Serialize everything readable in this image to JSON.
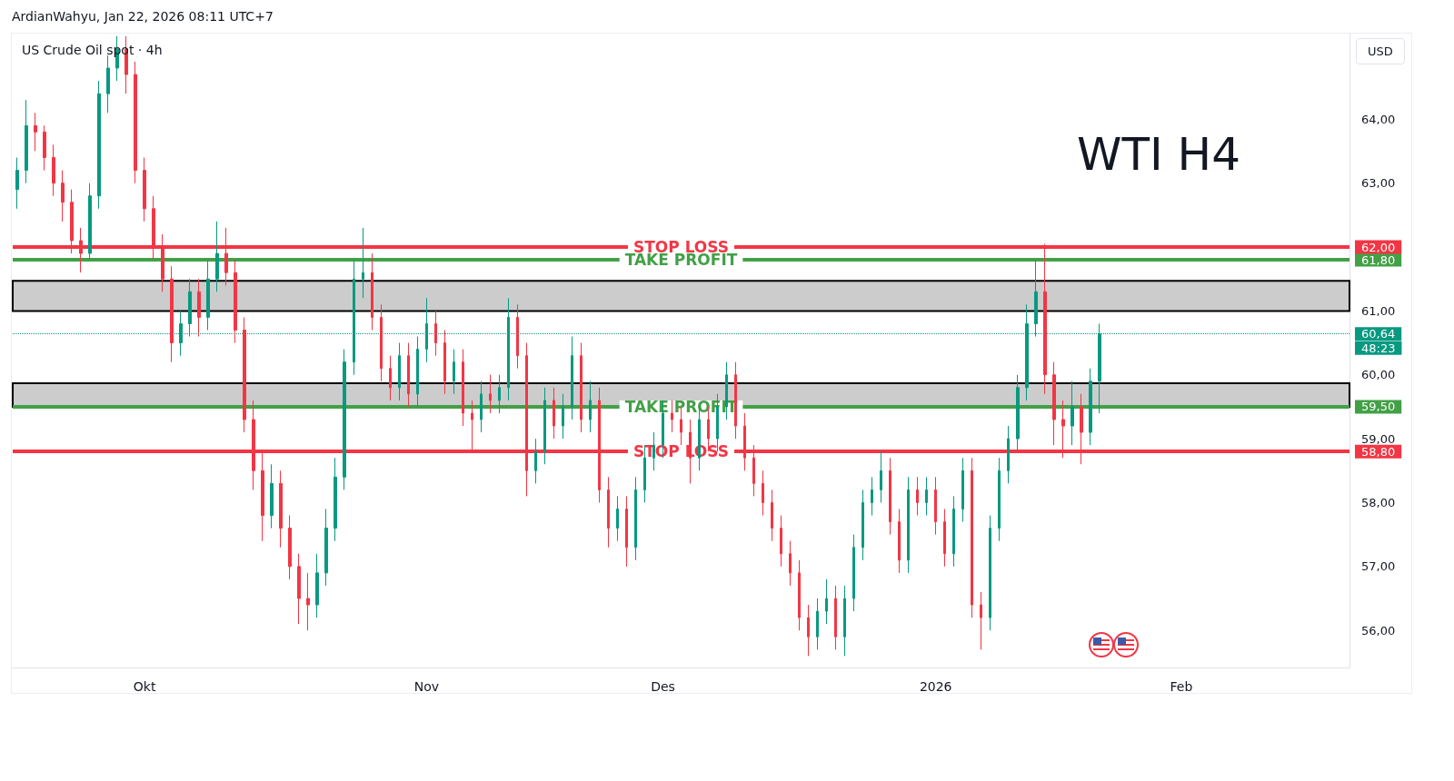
{
  "chart_data": {
    "type": "candlestick",
    "title": "US Crude Oil spot · 4h",
    "subtitle": "ArdianWahyu, Jan 22, 2026 08:11 UTC+7",
    "ylabel": "USD",
    "categories": [
      null,
      null,
      null,
      null,
      null,
      null,
      null,
      null,
      null,
      null,
      null,
      null,
      null,
      null,
      "Okt",
      null,
      null,
      null,
      null,
      null,
      null,
      null,
      null,
      null,
      null,
      null,
      null,
      null,
      null,
      null,
      null,
      null,
      null,
      null,
      null,
      null,
      null,
      null,
      null,
      null,
      null,
      null,
      null,
      null,
      null,
      "Nov",
      null,
      null,
      null,
      null,
      null,
      null,
      null,
      null,
      null,
      null,
      null,
      null,
      null,
      null,
      null,
      null,
      null,
      null,
      null,
      null,
      null,
      null,
      null,
      null,
      null,
      "Des",
      null,
      null,
      null,
      null,
      null,
      null,
      null,
      null,
      null,
      null,
      null,
      null,
      null,
      null,
      null,
      null,
      null,
      null,
      null,
      null,
      null,
      null,
      null,
      null,
      null,
      null,
      null,
      null,
      null,
      "2026",
      null,
      null,
      null,
      null,
      null,
      null,
      null,
      null,
      null,
      null,
      null,
      null,
      null,
      null,
      null,
      null,
      null,
      null,
      null,
      null,
      null,
      null,
      null,
      null,
      null,
      null,
      "Feb",
      null,
      null,
      null,
      null,
      null,
      null,
      null,
      null,
      null,
      null,
      null,
      null,
      null,
      null,
      null,
      null,
      null,
      null
    ],
    "ohlc": [
      [
        62.9,
        63.4,
        62.6,
        63.2
      ],
      [
        63.2,
        64.3,
        63.0,
        63.9
      ],
      [
        63.9,
        64.1,
        63.5,
        63.8
      ],
      [
        63.8,
        63.9,
        63.2,
        63.4
      ],
      [
        63.4,
        63.6,
        62.8,
        63.0
      ],
      [
        63.0,
        63.2,
        62.4,
        62.7
      ],
      [
        62.7,
        62.9,
        61.9,
        62.1
      ],
      [
        62.1,
        62.3,
        61.6,
        61.9
      ],
      [
        61.9,
        63.0,
        61.8,
        62.8
      ],
      [
        62.8,
        64.6,
        62.6,
        64.4
      ],
      [
        64.4,
        65.0,
        64.1,
        64.8
      ],
      [
        64.8,
        65.3,
        64.6,
        65.1
      ],
      [
        65.1,
        65.3,
        64.4,
        64.7
      ],
      [
        64.7,
        64.9,
        63.0,
        63.2
      ],
      [
        63.2,
        63.4,
        62.4,
        62.6
      ],
      [
        62.6,
        62.8,
        61.8,
        62.0
      ],
      [
        62.0,
        62.2,
        61.3,
        61.5
      ],
      [
        61.5,
        61.7,
        60.2,
        60.5
      ],
      [
        60.5,
        61.0,
        60.3,
        60.8
      ],
      [
        60.8,
        61.5,
        60.6,
        61.3
      ],
      [
        61.3,
        61.5,
        60.6,
        60.9
      ],
      [
        60.9,
        61.8,
        60.7,
        61.5
      ],
      [
        61.5,
        62.4,
        61.3,
        61.9
      ],
      [
        61.9,
        62.3,
        61.4,
        61.6
      ],
      [
        61.6,
        61.8,
        60.5,
        60.7
      ],
      [
        60.7,
        60.9,
        59.1,
        59.3
      ],
      [
        59.3,
        59.6,
        58.2,
        58.5
      ],
      [
        58.5,
        58.8,
        57.4,
        57.8
      ],
      [
        57.8,
        58.6,
        57.6,
        58.3
      ],
      [
        58.3,
        58.5,
        57.3,
        57.6
      ],
      [
        57.6,
        57.8,
        56.8,
        57.0
      ],
      [
        57.0,
        57.2,
        56.1,
        56.5
      ],
      [
        56.5,
        56.9,
        56.0,
        56.4
      ],
      [
        56.4,
        57.2,
        56.2,
        56.9
      ],
      [
        56.9,
        57.9,
        56.7,
        57.6
      ],
      [
        57.6,
        58.7,
        57.4,
        58.4
      ],
      [
        58.4,
        60.4,
        58.2,
        60.2
      ],
      [
        60.2,
        61.8,
        60.0,
        61.5
      ],
      [
        61.5,
        62.3,
        61.2,
        61.6
      ],
      [
        61.6,
        61.9,
        60.7,
        60.9
      ],
      [
        60.9,
        61.1,
        59.9,
        60.1
      ],
      [
        60.1,
        60.3,
        59.6,
        59.8
      ],
      [
        59.8,
        60.5,
        59.6,
        60.3
      ],
      [
        60.3,
        60.5,
        59.5,
        59.7
      ],
      [
        59.7,
        60.6,
        59.5,
        60.4
      ],
      [
        60.4,
        61.2,
        60.2,
        60.8
      ],
      [
        60.8,
        61.0,
        60.3,
        60.5
      ],
      [
        60.5,
        60.7,
        59.7,
        59.9
      ],
      [
        59.9,
        60.4,
        59.7,
        60.2
      ],
      [
        60.2,
        60.4,
        59.2,
        59.4
      ],
      [
        59.4,
        59.6,
        58.8,
        59.3
      ],
      [
        59.3,
        59.9,
        59.1,
        59.7
      ],
      [
        59.7,
        60.0,
        59.4,
        59.6
      ],
      [
        59.6,
        60.0,
        59.4,
        59.8
      ],
      [
        59.8,
        61.2,
        59.6,
        60.9
      ],
      [
        60.9,
        61.1,
        60.1,
        60.3
      ],
      [
        60.3,
        60.5,
        58.1,
        58.5
      ],
      [
        58.5,
        59.0,
        58.3,
        58.8
      ],
      [
        58.8,
        59.8,
        58.6,
        59.6
      ],
      [
        59.6,
        59.8,
        59.0,
        59.2
      ],
      [
        59.2,
        59.7,
        59.0,
        59.5
      ],
      [
        59.5,
        60.6,
        59.3,
        60.3
      ],
      [
        60.3,
        60.5,
        59.1,
        59.3
      ],
      [
        59.3,
        59.9,
        59.1,
        59.6
      ],
      [
        59.6,
        59.8,
        58.0,
        58.2
      ],
      [
        58.2,
        58.4,
        57.3,
        57.6
      ],
      [
        57.6,
        58.1,
        57.4,
        57.9
      ],
      [
        57.9,
        58.1,
        57.0,
        57.3
      ],
      [
        57.3,
        58.4,
        57.1,
        58.2
      ],
      [
        58.2,
        58.9,
        58.0,
        58.7
      ],
      [
        58.7,
        59.1,
        58.5,
        58.9
      ],
      [
        58.9,
        59.6,
        58.7,
        59.4
      ],
      [
        59.4,
        59.6,
        59.1,
        59.3
      ],
      [
        59.3,
        59.5,
        58.9,
        59.1
      ],
      [
        59.1,
        59.3,
        58.3,
        58.7
      ],
      [
        58.7,
        59.5,
        58.5,
        59.3
      ],
      [
        59.3,
        59.5,
        58.8,
        59.0
      ],
      [
        59.0,
        59.7,
        58.8,
        59.5
      ],
      [
        59.5,
        60.2,
        59.3,
        60.0
      ],
      [
        60.0,
        60.2,
        59.0,
        59.2
      ],
      [
        59.2,
        59.4,
        58.5,
        58.7
      ],
      [
        58.7,
        58.9,
        58.1,
        58.3
      ],
      [
        58.3,
        58.5,
        57.8,
        58.0
      ],
      [
        58.0,
        58.2,
        57.4,
        57.6
      ],
      [
        57.6,
        57.8,
        57.0,
        57.2
      ],
      [
        57.2,
        57.4,
        56.7,
        56.9
      ],
      [
        56.9,
        57.1,
        56.0,
        56.2
      ],
      [
        56.2,
        56.4,
        55.6,
        55.9
      ],
      [
        55.9,
        56.5,
        55.7,
        56.3
      ],
      [
        56.3,
        56.8,
        56.1,
        56.5
      ],
      [
        56.5,
        56.7,
        55.7,
        55.9
      ],
      [
        55.9,
        56.7,
        55.6,
        56.5
      ],
      [
        56.5,
        57.5,
        56.3,
        57.3
      ],
      [
        57.3,
        58.2,
        57.1,
        58.0
      ],
      [
        58.0,
        58.4,
        57.8,
        58.2
      ],
      [
        58.2,
        58.8,
        58.0,
        58.5
      ],
      [
        58.5,
        58.7,
        57.5,
        57.7
      ],
      [
        57.7,
        57.9,
        56.9,
        57.1
      ],
      [
        57.1,
        58.4,
        56.9,
        58.2
      ],
      [
        58.2,
        58.4,
        57.8,
        58.0
      ],
      [
        58.0,
        58.4,
        57.8,
        58.2
      ],
      [
        58.2,
        58.4,
        57.5,
        57.7
      ],
      [
        57.7,
        57.9,
        57.0,
        57.2
      ],
      [
        57.2,
        58.1,
        57.0,
        57.9
      ],
      [
        57.9,
        58.7,
        57.7,
        58.5
      ],
      [
        58.5,
        58.7,
        56.2,
        56.4
      ],
      [
        56.4,
        56.6,
        55.7,
        56.2
      ],
      [
        56.2,
        57.8,
        56.0,
        57.6
      ],
      [
        57.6,
        58.7,
        57.4,
        58.5
      ],
      [
        58.5,
        59.2,
        58.3,
        59.0
      ],
      [
        59.0,
        60.0,
        58.8,
        59.8
      ],
      [
        59.8,
        61.1,
        59.6,
        60.8
      ],
      [
        60.8,
        61.8,
        60.6,
        61.3
      ],
      [
        61.3,
        62.05,
        59.7,
        60.0
      ],
      [
        60.0,
        60.2,
        58.9,
        59.3
      ],
      [
        59.3,
        59.6,
        58.7,
        59.2
      ],
      [
        59.2,
        59.9,
        58.9,
        59.5
      ],
      [
        59.5,
        59.7,
        58.6,
        59.1
      ],
      [
        59.1,
        60.1,
        58.9,
        59.9
      ],
      [
        59.9,
        60.8,
        59.4,
        60.64
      ],
      null,
      null,
      null,
      null,
      null,
      null,
      null,
      null,
      null,
      null,
      null,
      null,
      null,
      null,
      null,
      null,
      null,
      null,
      null,
      null,
      null,
      null,
      null,
      null,
      null,
      null,
      null
    ],
    "ylim": [
      55.42,
      65.34
    ],
    "yticks": [
      {
        "value": 56,
        "label": "56,00"
      },
      {
        "value": 57,
        "label": "57,00"
      },
      {
        "value": 58,
        "label": "58,00"
      },
      {
        "value": 58.8,
        "label": "58,80"
      },
      {
        "value": 59,
        "label": "59,00"
      },
      {
        "value": 59.5,
        "label": "59,50"
      },
      {
        "value": 60,
        "label": "60,00"
      },
      {
        "value": 60.64,
        "label": "60,64"
      },
      {
        "value": 61,
        "label": "61,00"
      },
      {
        "value": 61.8,
        "label": "61,80"
      },
      {
        "value": 62,
        "label": "62,00"
      },
      {
        "value": 63,
        "label": "63,00"
      },
      {
        "value": 64,
        "label": "64,00"
      }
    ],
    "ref_lines": [
      {
        "axis": "y",
        "value": 62,
        "label": "STOP LOSS",
        "color": "#f23645"
      },
      {
        "axis": "y",
        "value": 61.8,
        "label": "TAKE PROFIT",
        "color": "#43a047"
      },
      {
        "axis": "y",
        "value": 59.5,
        "label": "TAKE PROFIT",
        "color": "#43a047"
      },
      {
        "axis": "y",
        "value": 58.8,
        "label": "STOP LOSS",
        "color": "#f23645"
      },
      {
        "axis": "y",
        "value": 60.64,
        "label": null,
        "color": "#089981",
        "line_style": "dotted"
      }
    ],
    "bands": [
      {
        "axis": "y",
        "from": 61.0,
        "to": 61.47,
        "label": null,
        "color": "#cccccc"
      },
      {
        "axis": "y",
        "from": 59.5,
        "to": 59.87,
        "label": null,
        "color": "#cccccc"
      }
    ],
    "annotations": [
      "WTI H4",
      "48:23"
    ]
  }
}
